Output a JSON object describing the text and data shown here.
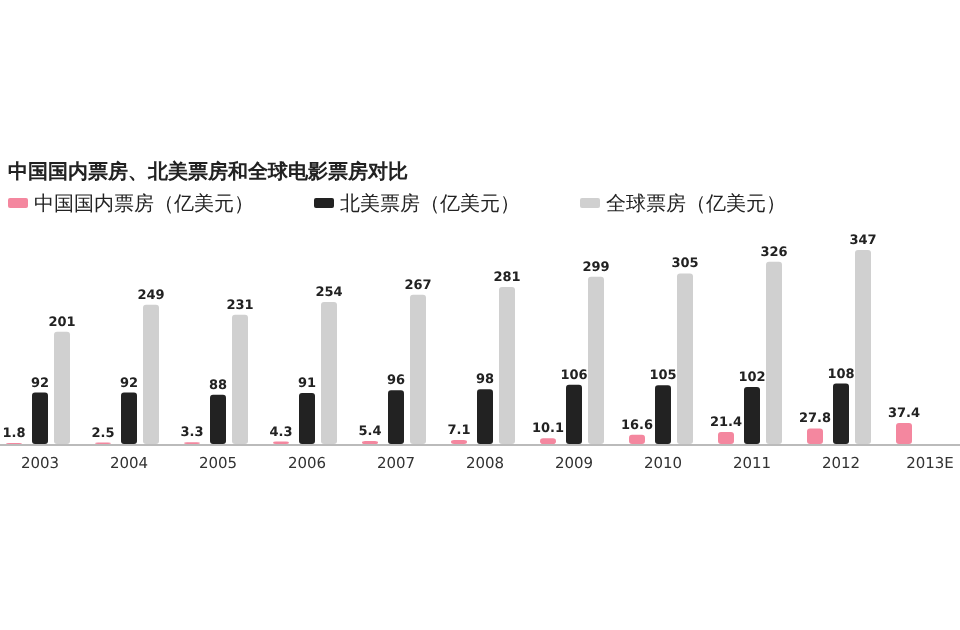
{
  "chart_data": {
    "type": "bar",
    "title": "中国国内票房、北美票房和全球电影票房对比",
    "categories": [
      "2003",
      "2004",
      "2005",
      "2006",
      "2007",
      "2008",
      "2009",
      "2010",
      "2011",
      "2012",
      "2013E"
    ],
    "series": [
      {
        "name": "中国国内票房（亿美元）",
        "color": "#f4879f",
        "values": [
          1.8,
          2.5,
          3.3,
          4.3,
          5.4,
          7.1,
          10.1,
          16.6,
          21.4,
          27.8,
          37.4
        ]
      },
      {
        "name": "北美票房（亿美元）",
        "color": "#222222",
        "values": [
          92,
          92,
          88,
          91,
          96,
          98,
          106,
          105,
          102,
          108,
          null
        ]
      },
      {
        "name": "全球票房（亿美元）",
        "color": "#d0d0d0",
        "values": [
          201,
          249,
          231,
          254,
          267,
          281,
          299,
          305,
          326,
          347,
          null
        ]
      }
    ],
    "data_labels": true,
    "legend": "top left"
  }
}
